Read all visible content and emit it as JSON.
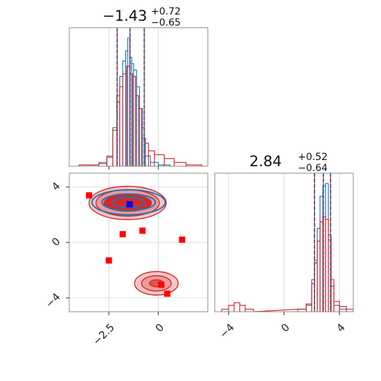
{
  "chart_data": [
    {
      "panel": "marginal-x",
      "type": "histogram",
      "title": {
        "value": "−1.43",
        "upper": "+0.72",
        "lower": "−0.65"
      },
      "xlim": [
        -4.5,
        2.5
      ],
      "grid": true,
      "x_ticks": [
        -2.5,
        0.0
      ],
      "quantile_lines": [
        -2.08,
        -1.43,
        -0.71
      ],
      "series": [
        {
          "color": "#1f77b4",
          "bins": [
            [
              -4.0,
              -3.0,
              0.01
            ],
            [
              -3.0,
              -2.6,
              0.03
            ],
            [
              -2.6,
              -2.3,
              0.08
            ],
            [
              -2.3,
              -2.1,
              0.3
            ],
            [
              -2.1,
              -1.95,
              0.55
            ],
            [
              -1.95,
              -1.8,
              0.7
            ],
            [
              -1.8,
              -1.65,
              0.82
            ],
            [
              -1.65,
              -1.55,
              0.9
            ],
            [
              -1.55,
              -1.45,
              1.0
            ],
            [
              -1.45,
              -1.35,
              0.85
            ],
            [
              -1.35,
              -1.25,
              0.8
            ],
            [
              -1.25,
              -1.1,
              0.75
            ],
            [
              -1.1,
              -0.95,
              0.62
            ],
            [
              -0.95,
              -0.8,
              0.45
            ],
            [
              -0.8,
              -0.65,
              0.22
            ],
            [
              -0.65,
              -0.4,
              0.08
            ],
            [
              -0.4,
              0.0,
              0.03
            ],
            [
              0.0,
              0.6,
              0.01
            ]
          ]
        },
        {
          "color": "#d62728",
          "bins": [
            [
              -4.0,
              -3.0,
              0.01
            ],
            [
              -3.0,
              -2.6,
              0.02
            ],
            [
              -2.6,
              -2.3,
              0.07
            ],
            [
              -2.3,
              -2.1,
              0.28
            ],
            [
              -2.1,
              -1.95,
              0.5
            ],
            [
              -1.95,
              -1.8,
              0.62
            ],
            [
              -1.8,
              -1.6,
              0.72
            ],
            [
              -1.6,
              -1.45,
              0.78
            ],
            [
              -1.45,
              -1.3,
              0.72
            ],
            [
              -1.3,
              -1.15,
              0.7
            ],
            [
              -1.15,
              -1.0,
              0.55
            ],
            [
              -1.0,
              -0.85,
              0.45
            ],
            [
              -0.85,
              -0.7,
              0.3
            ],
            [
              -0.7,
              -0.5,
              0.18
            ],
            [
              -0.5,
              -0.2,
              0.12
            ],
            [
              -0.2,
              0.3,
              0.09
            ],
            [
              0.3,
              0.8,
              0.06
            ],
            [
              0.8,
              1.4,
              0.03
            ],
            [
              1.4,
              2.2,
              0.01
            ]
          ]
        }
      ]
    },
    {
      "panel": "marginal-y",
      "type": "histogram",
      "title": {
        "value": "2.84",
        "upper": "+0.52",
        "lower": "−0.64"
      },
      "xlim": [
        -5,
        5
      ],
      "grid": true,
      "x_ticks": [
        -4,
        0,
        4
      ],
      "quantile_lines": [
        2.2,
        2.84,
        3.36
      ],
      "series": [
        {
          "color": "#1f77b4",
          "bins": [
            [
              1.0,
              1.6,
              0.02
            ],
            [
              1.6,
              2.0,
              0.05
            ],
            [
              2.0,
              2.2,
              0.25
            ],
            [
              2.2,
              2.4,
              0.4
            ],
            [
              2.4,
              2.6,
              0.65
            ],
            [
              2.6,
              2.8,
              0.9
            ],
            [
              2.8,
              3.0,
              0.98
            ],
            [
              3.0,
              3.2,
              1.0
            ],
            [
              3.2,
              3.4,
              0.6
            ],
            [
              3.4,
              3.6,
              0.2
            ],
            [
              3.6,
              4.0,
              0.05
            ],
            [
              4.0,
              4.5,
              0.02
            ]
          ]
        },
        {
          "color": "#d62728",
          "bins": [
            [
              -4.5,
              -4.0,
              0.02
            ],
            [
              -4.0,
              -3.6,
              0.05
            ],
            [
              -3.6,
              -3.2,
              0.07
            ],
            [
              -3.2,
              -2.8,
              0.05
            ],
            [
              -2.8,
              -2.2,
              0.02
            ],
            [
              1.0,
              1.6,
              0.02
            ],
            [
              1.6,
              2.0,
              0.06
            ],
            [
              2.0,
              2.2,
              0.22
            ],
            [
              2.2,
              2.4,
              0.38
            ],
            [
              2.4,
              2.6,
              0.55
            ],
            [
              2.6,
              2.8,
              0.7
            ],
            [
              2.8,
              3.0,
              0.74
            ],
            [
              3.0,
              3.2,
              0.72
            ],
            [
              3.2,
              3.4,
              0.56
            ],
            [
              3.4,
              3.6,
              0.25
            ],
            [
              3.6,
              4.0,
              0.08
            ],
            [
              4.0,
              4.5,
              0.04
            ],
            [
              4.5,
              5.0,
              0.02
            ]
          ]
        }
      ]
    },
    {
      "panel": "joint",
      "type": "contour-scatter",
      "xlim": [
        -4.5,
        2.5
      ],
      "ylim": [
        -5,
        5
      ],
      "grid": true,
      "x_ticks": [
        -2.5,
        0.0
      ],
      "y_ticks": [
        -4,
        0,
        4
      ],
      "modes": [
        {
          "center": [
            -1.55,
            2.85
          ],
          "levels": [
            {
              "rx": 1.95,
              "ry": 1.2,
              "fill": "#f4c6c6",
              "stroke": "#d62728"
            },
            {
              "rx": 1.6,
              "ry": 0.95,
              "fill": "#ec9a9a",
              "stroke": "#d62728"
            },
            {
              "rx": 1.2,
              "ry": 0.6,
              "fill": "#d62728",
              "stroke": "#d62728"
            }
          ]
        },
        {
          "center": [
            -0.1,
            -2.95
          ],
          "levels": [
            {
              "rx": 1.1,
              "ry": 0.85,
              "fill": "#f4c6c6",
              "stroke": "#d62728"
            },
            {
              "rx": 0.75,
              "ry": 0.55,
              "fill": "#ec9a9a",
              "stroke": "#d62728"
            },
            {
              "rx": 0.35,
              "ry": 0.25,
              "fill": "#e05555",
              "stroke": "#d62728"
            }
          ]
        }
      ],
      "blue_contours": {
        "center": [
          -1.5,
          2.9
        ],
        "radii": [
          [
            1.85,
            0.9
          ],
          [
            1.35,
            0.6
          ],
          [
            0.8,
            0.35
          ]
        ],
        "color": "#1f77b4"
      },
      "red_markers": [
        [
          -3.5,
          3.4
        ],
        [
          -1.8,
          0.6
        ],
        [
          -0.8,
          0.85
        ],
        [
          -2.5,
          -1.3
        ],
        [
          1.2,
          0.2
        ],
        [
          0.15,
          -3.05
        ],
        [
          0.45,
          -3.7
        ]
      ],
      "blue_marker": [
        -1.45,
        2.75
      ]
    }
  ]
}
